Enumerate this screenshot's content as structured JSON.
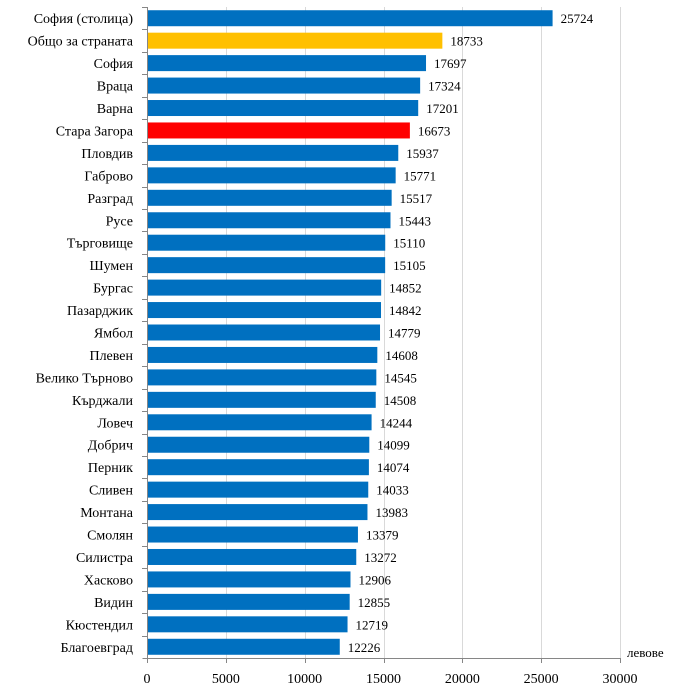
{
  "chart_data": {
    "type": "bar",
    "orientation": "horizontal",
    "title": "",
    "xlabel": "левове",
    "ylabel": "",
    "xlim": [
      0,
      30000
    ],
    "xticks": [
      0,
      5000,
      10000,
      15000,
      20000,
      25000,
      30000
    ],
    "grid": true,
    "legend": "none",
    "categories": [
      "София (столица)",
      "Общо за страната",
      "София",
      "Враца",
      "Варна",
      "Стара Загора",
      "Пловдив",
      "Габрово",
      "Разград",
      "Русе",
      "Търговище",
      "Шумен",
      "Бургас",
      "Пазарджик",
      "Ямбол",
      "Плевен",
      "Велико Търново",
      "Кърджали",
      "Ловеч",
      "Добрич",
      "Перник",
      "Сливен",
      "Монтана",
      "Смолян",
      "Силистра",
      "Хасково",
      "Видин",
      "Кюстендил",
      "Благоевград"
    ],
    "values": [
      25724,
      18733,
      17697,
      17324,
      17201,
      16673,
      15937,
      15771,
      15517,
      15443,
      15110,
      15105,
      14852,
      14842,
      14779,
      14608,
      14545,
      14508,
      14244,
      14099,
      14074,
      14033,
      13983,
      13379,
      13272,
      12906,
      12855,
      12719,
      12226
    ],
    "colors": {
      "default": "#0070C0",
      "highlight_country": "#FFC000",
      "highlight_region": "#FF0000"
    },
    "highlights": {
      "Общо за страната": "highlight_country",
      "Стара Загора": "highlight_region"
    }
  }
}
